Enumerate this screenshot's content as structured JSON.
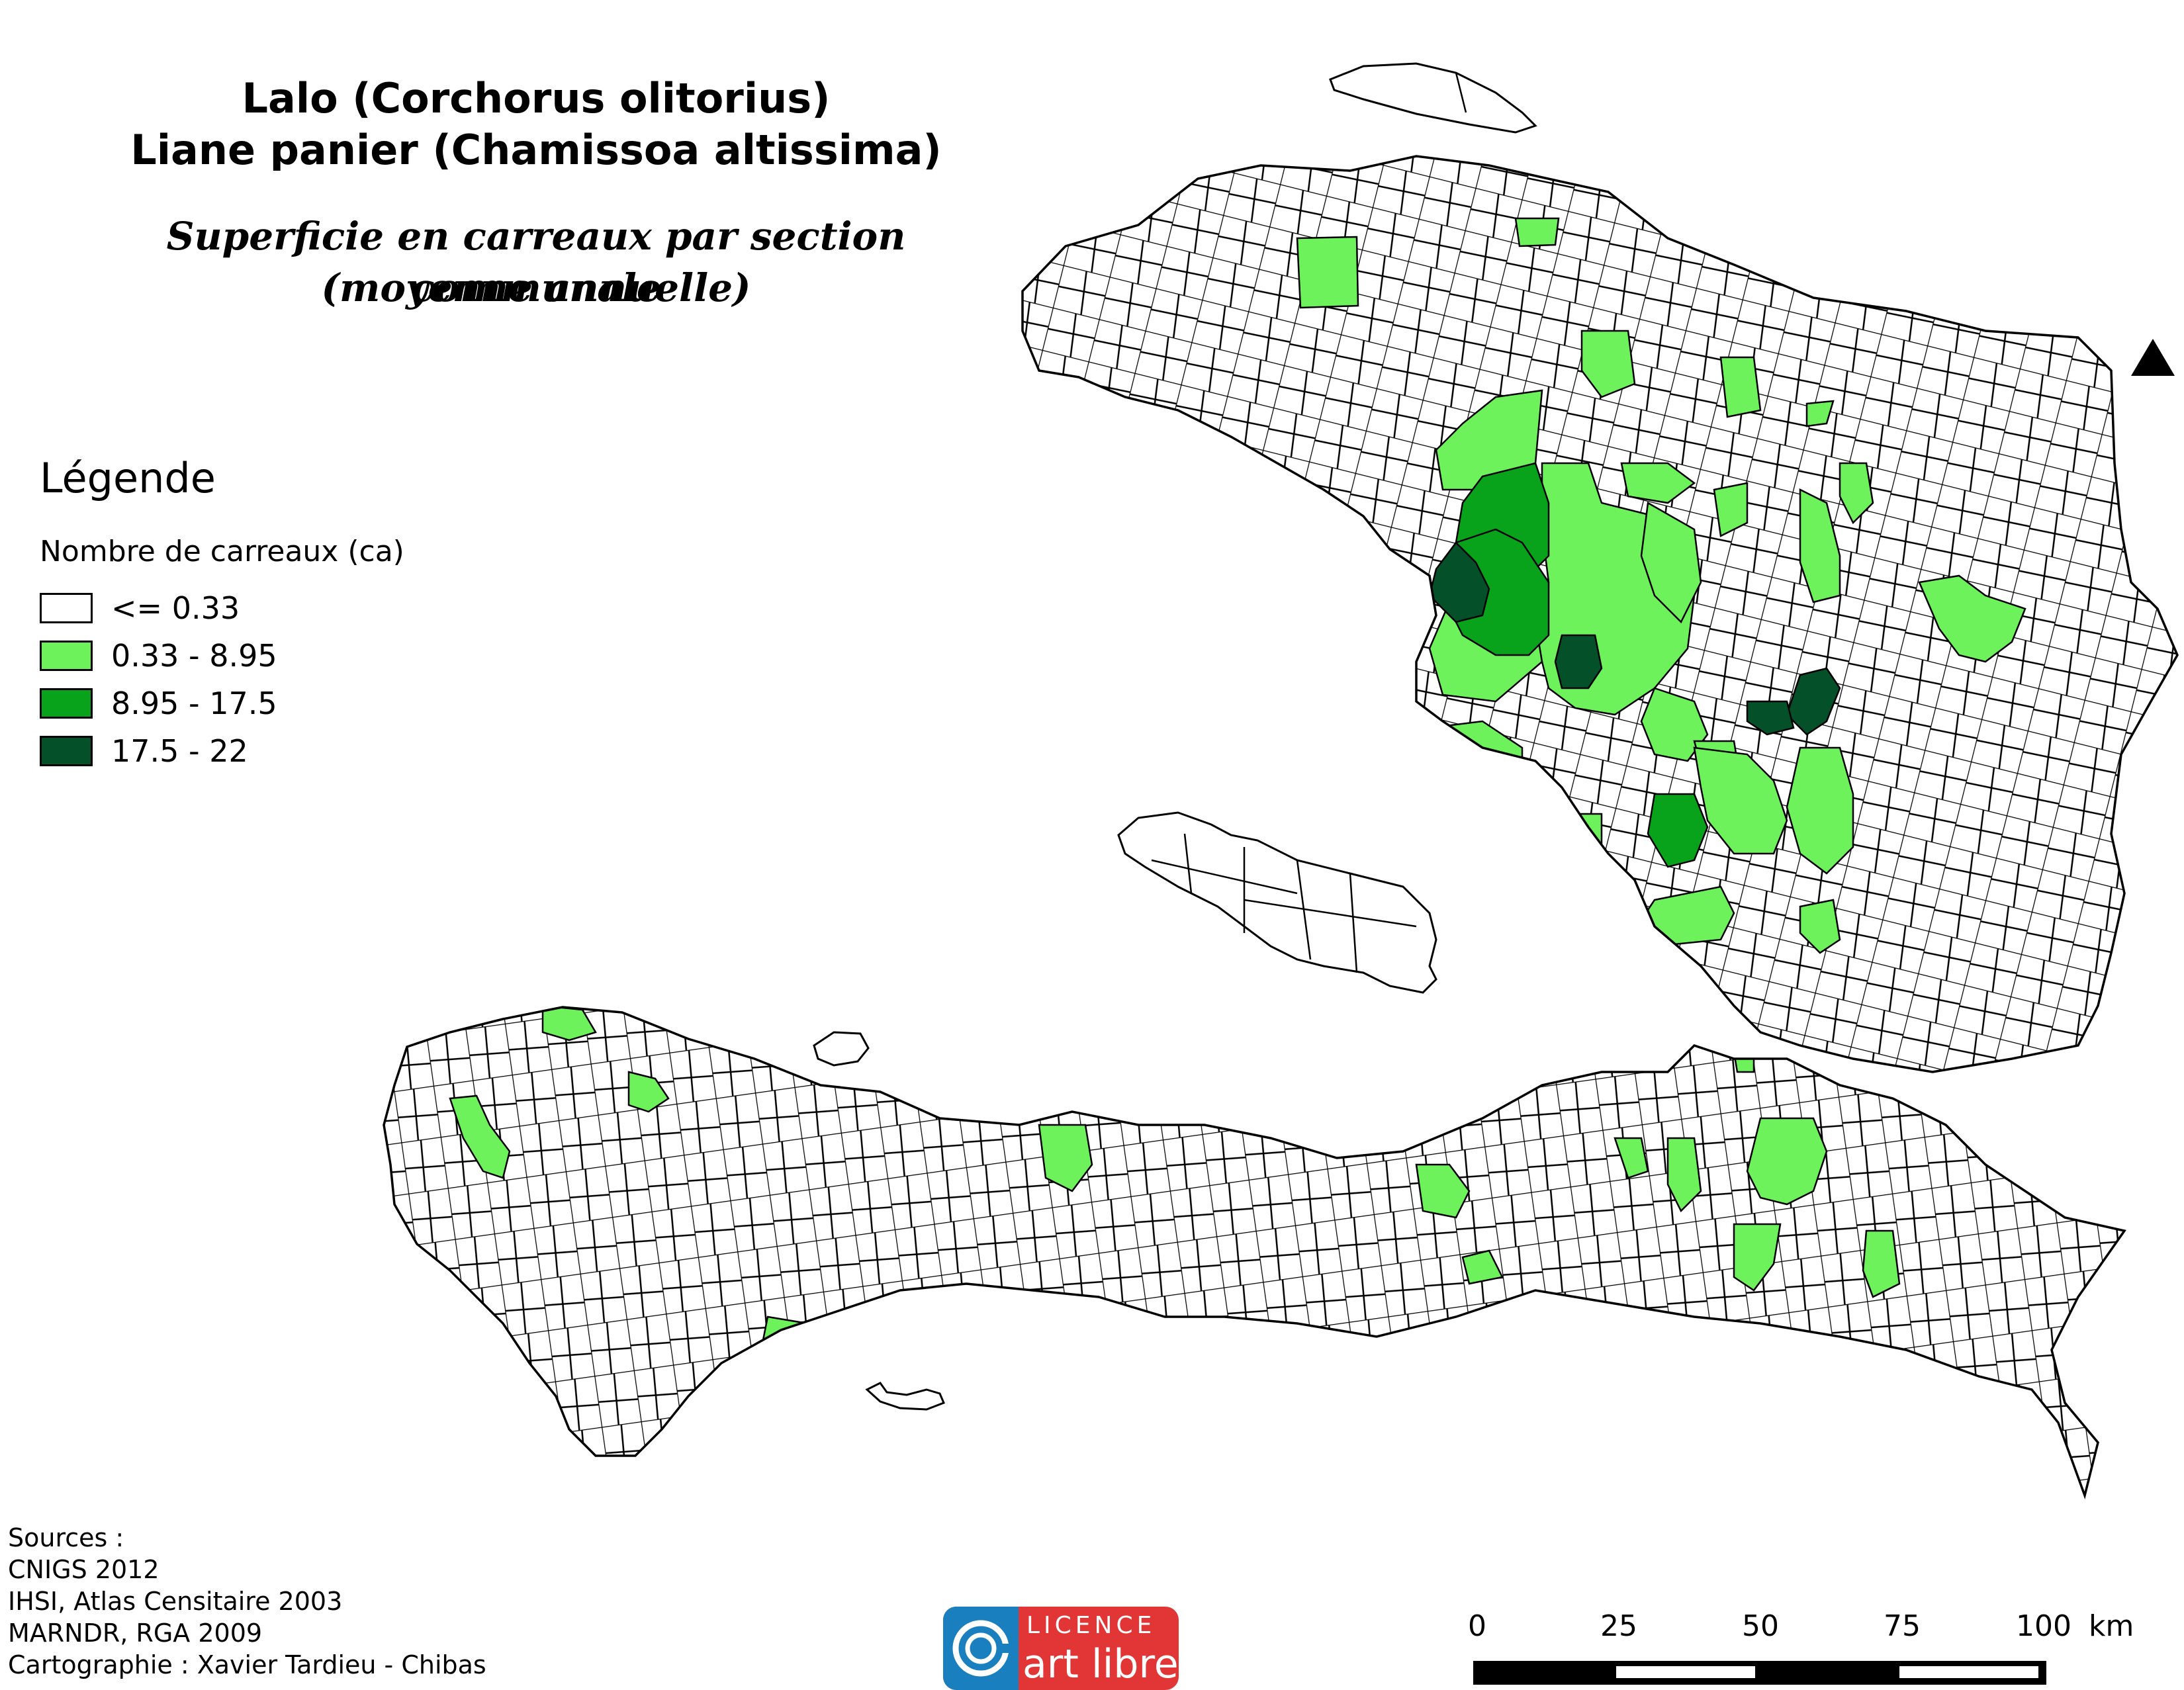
{
  "title": {
    "line1": "Lalo (Corchorus olitorius)",
    "line2": "Liane panier (Chamissoa altissima)",
    "subtitle1": "Superficie en carreaux par section communale",
    "subtitle2": "(moyenne annuelle)"
  },
  "legend": {
    "heading": "Légende",
    "subheading": "Nombre de carreaux (ca)",
    "classes": [
      {
        "label": "<= 0.33",
        "color": "#ffffff"
      },
      {
        "label": "0.33 - 8.95",
        "color": "#6ef25c"
      },
      {
        "label": "8.95 - 17.5",
        "color": "#08a31b"
      },
      {
        "label": "17.5 - 22",
        "color": "#045028"
      }
    ]
  },
  "sources": [
    "Sources :",
    "CNIGS 2012",
    "IHSI, Atlas Censitaire 2003",
    "MARNDR, RGA 2009",
    "Cartographie : Xavier Tardieu - Chibas"
  ],
  "licence": {
    "top": "LICENCE",
    "bottom": "art libre",
    "color_red": "#e23636",
    "color_blue": "#1a7fbf"
  },
  "scale_bar": {
    "ticks": [
      "0",
      "25",
      "50",
      "75",
      "100"
    ],
    "unit": "km"
  },
  "north_arrow": "north-arrow-icon",
  "colors": {
    "outline": "#000000",
    "background": "#ffffff"
  }
}
